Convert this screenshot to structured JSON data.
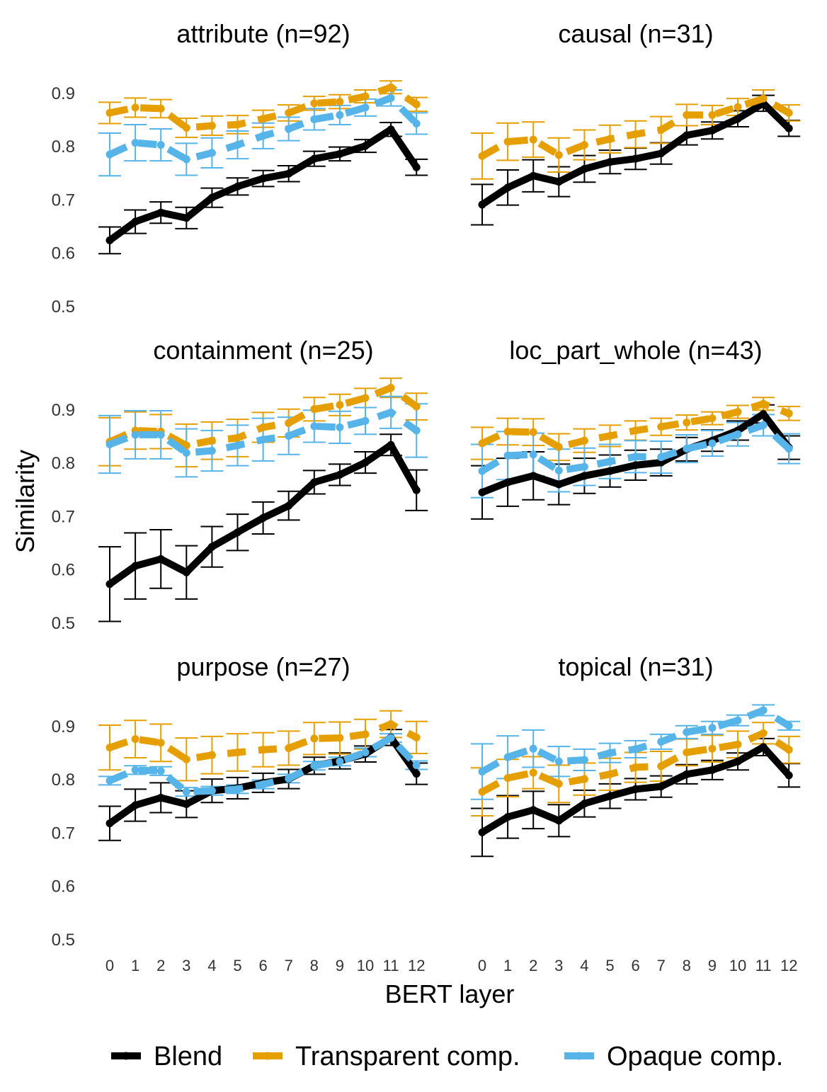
{
  "chart_data": {
    "type": "line",
    "xlabel": "BERT layer",
    "ylabel": "Similarity",
    "x": [
      0,
      1,
      2,
      3,
      4,
      5,
      6,
      7,
      8,
      9,
      10,
      11,
      12
    ],
    "x_tick_labels": [
      "0",
      "1",
      "2",
      "3",
      "4",
      "5",
      "6",
      "7",
      "8",
      "9",
      "10",
      "11",
      "12"
    ],
    "ylim": [
      0.5,
      0.93
    ],
    "y_ticks": [
      0.5,
      0.6,
      0.7,
      0.8,
      0.9
    ],
    "y_tick_labels": [
      "0.5",
      "0.6",
      "0.7",
      "0.8",
      "0.9"
    ],
    "legend": {
      "position": "bottom",
      "items": [
        {
          "label": "Blend",
          "color": "#000000",
          "style": "solid"
        },
        {
          "label": "Transparent comp.",
          "color": "#E69F00",
          "style": "dashed"
        },
        {
          "label": "Opaque comp.",
          "color": "#56B4E9",
          "style": "dashed"
        }
      ]
    },
    "panels": [
      {
        "title": "attribute (n=92)",
        "series": [
          {
            "name": "Blend",
            "values": [
              0.623,
              0.658,
              0.675,
              0.665,
              0.703,
              0.724,
              0.739,
              0.748,
              0.776,
              0.785,
              0.8,
              0.831,
              0.76
            ],
            "errors": [
              0.025,
              0.022,
              0.02,
              0.02,
              0.018,
              0.016,
              0.015,
              0.015,
              0.014,
              0.013,
              0.012,
              0.013,
              0.015
            ]
          },
          {
            "name": "Transparent comp.",
            "values": [
              0.862,
              0.872,
              0.87,
              0.834,
              0.838,
              0.84,
              0.851,
              0.862,
              0.88,
              0.883,
              0.893,
              0.91,
              0.878
            ],
            "errors": [
              0.02,
              0.018,
              0.017,
              0.018,
              0.018,
              0.017,
              0.016,
              0.015,
              0.013,
              0.013,
              0.012,
              0.012,
              0.013
            ]
          },
          {
            "name": "Opaque comp.",
            "values": [
              0.784,
              0.806,
              0.802,
              0.775,
              0.787,
              0.802,
              0.819,
              0.832,
              0.85,
              0.858,
              0.872,
              0.89,
              0.842
            ],
            "errors": [
              0.04,
              0.034,
              0.03,
              0.03,
              0.028,
              0.026,
              0.024,
              0.022,
              0.02,
              0.018,
              0.016,
              0.015,
              0.02
            ]
          }
        ]
      },
      {
        "title": "causal (n=31)",
        "series": [
          {
            "name": "Blend",
            "values": [
              0.69,
              0.722,
              0.744,
              0.733,
              0.757,
              0.77,
              0.776,
              0.786,
              0.82,
              0.829,
              0.851,
              0.88,
              0.833
            ],
            "errors": [
              0.038,
              0.033,
              0.03,
              0.028,
              0.025,
              0.022,
              0.02,
              0.02,
              0.018,
              0.016,
              0.015,
              0.015,
              0.015
            ]
          },
          {
            "name": "Transparent comp.",
            "values": [
              0.781,
              0.808,
              0.812,
              0.783,
              0.802,
              0.813,
              0.822,
              0.83,
              0.858,
              0.858,
              0.873,
              0.889,
              0.862
            ],
            "errors": [
              0.043,
              0.035,
              0.033,
              0.032,
              0.028,
              0.026,
              0.025,
              0.025,
              0.02,
              0.018,
              0.016,
              0.016,
              0.015
            ]
          }
        ]
      },
      {
        "title": "containment (n=25)",
        "series": [
          {
            "name": "Blend",
            "values": [
              0.572,
              0.606,
              0.619,
              0.594,
              0.642,
              0.669,
              0.696,
              0.719,
              0.763,
              0.777,
              0.8,
              0.833,
              0.748
            ],
            "errors": [
              0.07,
              0.062,
              0.055,
              0.05,
              0.038,
              0.034,
              0.03,
              0.027,
              0.022,
              0.02,
              0.02,
              0.02,
              0.038
            ]
          },
          {
            "name": "Transparent comp.",
            "values": [
              0.839,
              0.86,
              0.858,
              0.832,
              0.841,
              0.846,
              0.866,
              0.874,
              0.9,
              0.908,
              0.921,
              0.94,
              0.905
            ],
            "errors": [
              0.045,
              0.035,
              0.032,
              0.04,
              0.035,
              0.035,
              0.028,
              0.026,
              0.022,
              0.02,
              0.018,
              0.018,
              0.025
            ]
          },
          {
            "name": "Opaque comp.",
            "values": [
              0.834,
              0.852,
              0.852,
              0.818,
              0.822,
              0.832,
              0.843,
              0.85,
              0.868,
              0.866,
              0.878,
              0.894,
              0.86
            ],
            "errors": [
              0.054,
              0.045,
              0.045,
              0.045,
              0.038,
              0.038,
              0.04,
              0.035,
              0.03,
              0.03,
              0.025,
              0.03,
              0.05
            ]
          }
        ]
      },
      {
        "title": "loc_part_whole (n=43)",
        "series": [
          {
            "name": "Blend",
            "values": [
              0.744,
              0.763,
              0.775,
              0.759,
              0.775,
              0.784,
              0.795,
              0.8,
              0.825,
              0.841,
              0.86,
              0.891,
              0.828
            ],
            "errors": [
              0.05,
              0.045,
              0.045,
              0.038,
              0.033,
              0.03,
              0.028,
              0.025,
              0.022,
              0.02,
              0.018,
              0.017,
              0.022
            ]
          },
          {
            "name": "Transparent comp.",
            "values": [
              0.836,
              0.858,
              0.857,
              0.829,
              0.841,
              0.85,
              0.86,
              0.867,
              0.875,
              0.883,
              0.895,
              0.91,
              0.892
            ],
            "errors": [
              0.03,
              0.025,
              0.025,
              0.025,
              0.022,
              0.02,
              0.018,
              0.016,
              0.014,
              0.012,
              0.012,
              0.012,
              0.013
            ]
          },
          {
            "name": "Opaque comp.",
            "values": [
              0.784,
              0.813,
              0.815,
              0.785,
              0.792,
              0.802,
              0.811,
              0.81,
              0.826,
              0.836,
              0.853,
              0.87,
              0.826
            ],
            "errors": [
              0.05,
              0.045,
              0.04,
              0.04,
              0.035,
              0.032,
              0.03,
              0.03,
              0.026,
              0.024,
              0.022,
              0.02,
              0.028
            ]
          }
        ]
      },
      {
        "title": "purpose (n=27)",
        "series": [
          {
            "name": "Blend",
            "values": [
              0.717,
              0.751,
              0.765,
              0.753,
              0.778,
              0.783,
              0.793,
              0.8,
              0.825,
              0.834,
              0.847,
              0.878,
              0.81
            ],
            "errors": [
              0.032,
              0.03,
              0.028,
              0.025,
              0.022,
              0.02,
              0.018,
              0.018,
              0.016,
              0.015,
              0.015,
              0.015,
              0.02
            ]
          },
          {
            "name": "Transparent comp.",
            "values": [
              0.859,
              0.875,
              0.868,
              0.837,
              0.845,
              0.85,
              0.855,
              0.858,
              0.876,
              0.877,
              0.884,
              0.903,
              0.878
            ],
            "errors": [
              0.042,
              0.035,
              0.035,
              0.04,
              0.035,
              0.035,
              0.032,
              0.032,
              0.03,
              0.03,
              0.028,
              0.025,
              0.03
            ]
          },
          {
            "name": "Opaque comp.",
            "values": [
              0.797,
              0.817,
              0.815,
              0.776,
              0.778,
              0.781,
              0.79,
              0.801,
              0.825,
              0.833,
              0.85,
              0.877,
              0.826
            ],
            "errors": [
              0.008,
              0.008,
              0.008,
              0.008,
              0.008,
              0.008,
              0.008,
              0.008,
              0.008,
              0.008,
              0.008,
              0.008,
              0.008
            ]
          }
        ]
      },
      {
        "title": "topical (n=31)",
        "series": [
          {
            "name": "Blend",
            "values": [
              0.7,
              0.729,
              0.742,
              0.722,
              0.754,
              0.768,
              0.781,
              0.786,
              0.809,
              0.817,
              0.833,
              0.86,
              0.807
            ],
            "errors": [
              0.045,
              0.04,
              0.035,
              0.03,
              0.025,
              0.023,
              0.02,
              0.02,
              0.018,
              0.018,
              0.016,
              0.016,
              0.022
            ]
          },
          {
            "name": "Transparent comp.",
            "values": [
              0.776,
              0.802,
              0.812,
              0.791,
              0.8,
              0.809,
              0.822,
              0.824,
              0.85,
              0.857,
              0.865,
              0.886,
              0.855
            ],
            "errors": [
              0.045,
              0.035,
              0.03,
              0.035,
              0.03,
              0.03,
              0.028,
              0.028,
              0.025,
              0.025,
              0.025,
              0.02,
              0.025
            ]
          },
          {
            "name": "Opaque comp.",
            "values": [
              0.814,
              0.841,
              0.857,
              0.833,
              0.836,
              0.849,
              0.856,
              0.87,
              0.888,
              0.896,
              0.91,
              0.929,
              0.9
            ],
            "errors": [
              0.052,
              0.04,
              0.035,
              0.028,
              0.02,
              0.018,
              0.016,
              0.014,
              0.012,
              0.012,
              0.01,
              0.01,
              0.008
            ]
          }
        ]
      }
    ]
  }
}
